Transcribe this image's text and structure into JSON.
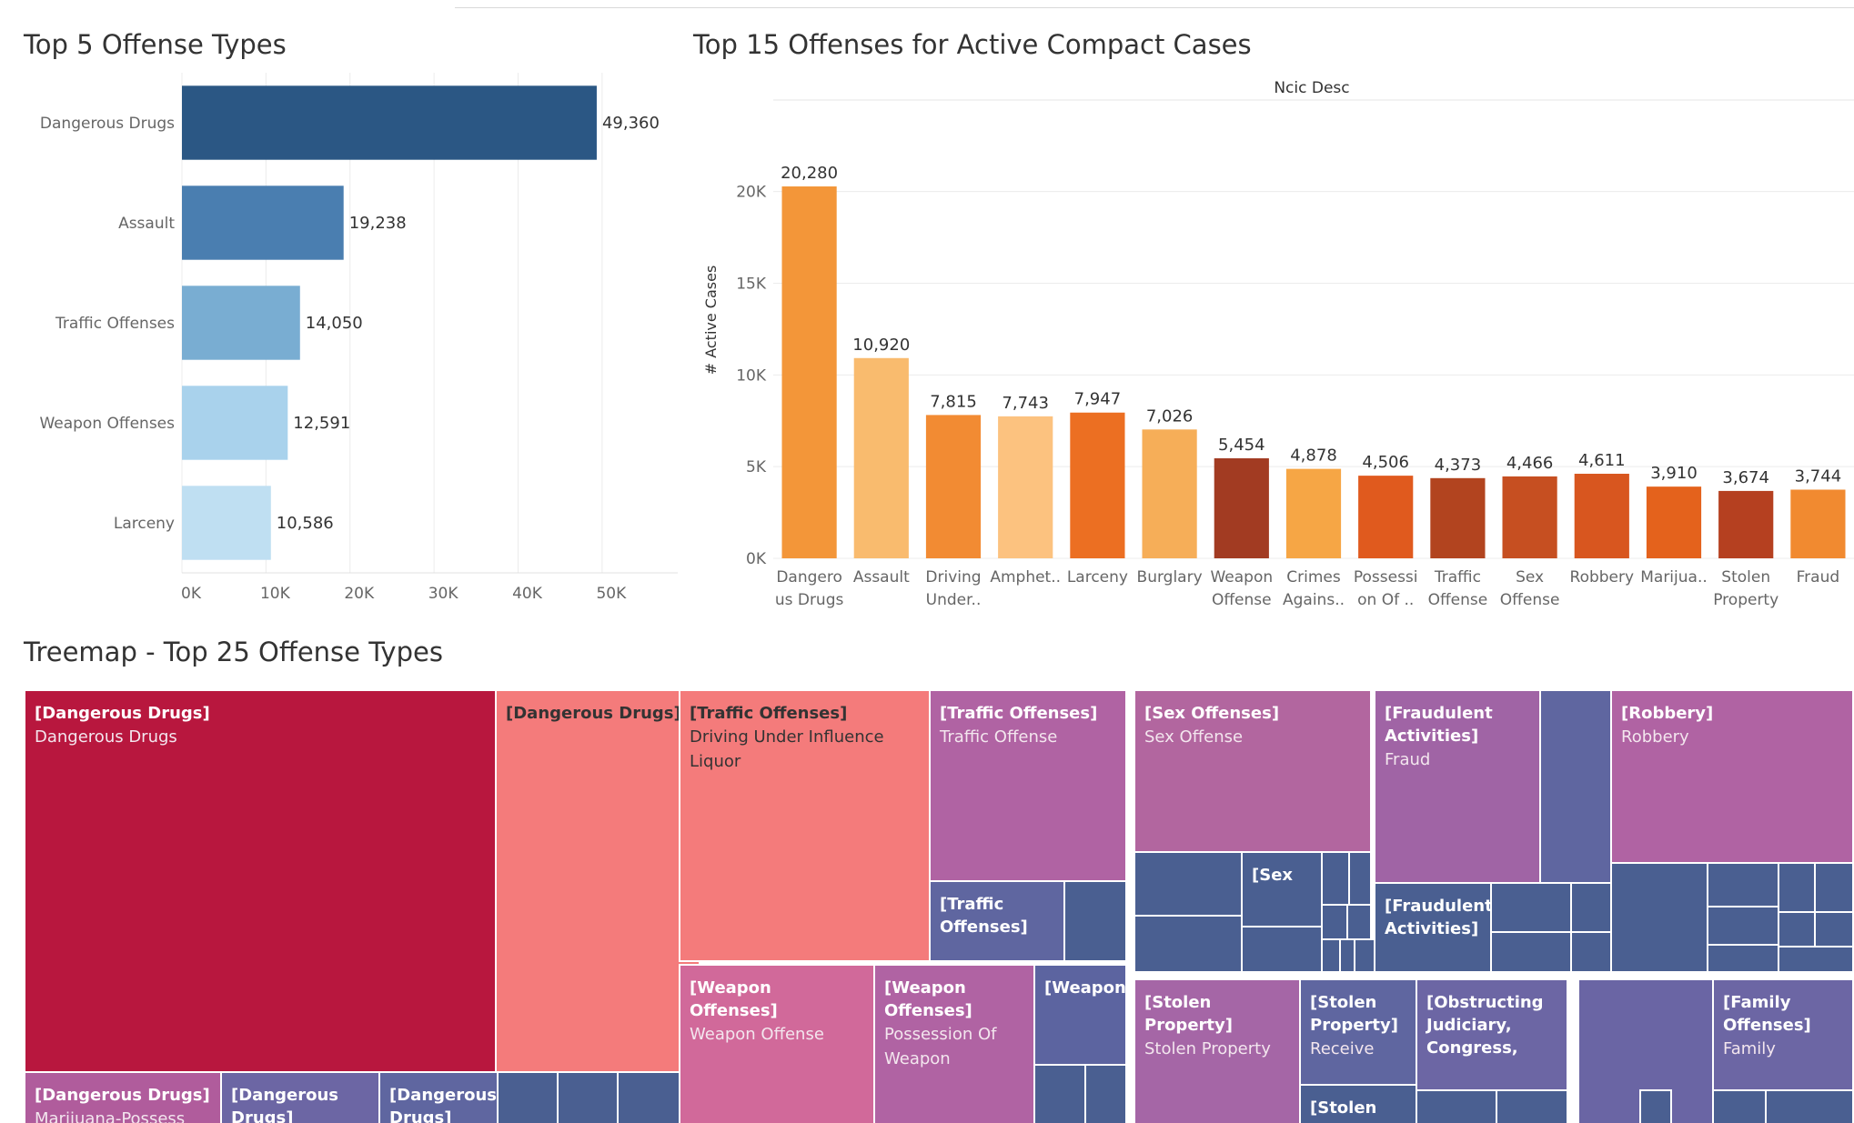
{
  "chart_data": [
    {
      "type": "bar",
      "orientation": "horizontal",
      "title": "Top 5 Offense Types",
      "categories": [
        "Dangerous Drugs",
        "Assault",
        "Traffic Offenses",
        "Weapon Offenses",
        "Larceny"
      ],
      "values": [
        49360,
        19238,
        14050,
        12591,
        10586
      ],
      "value_labels": [
        "49,360",
        "19,238",
        "14,050",
        "12,591",
        "10,586"
      ],
      "colors": [
        "#2b5784",
        "#4a7eb0",
        "#79add2",
        "#a9d2ec",
        "#bfdff2"
      ],
      "xticks": [
        "0K",
        "10K",
        "20K",
        "30K",
        "40K",
        "50K"
      ],
      "xtick_values": [
        0,
        10000,
        20000,
        30000,
        40000,
        50000
      ],
      "xlim": [
        0,
        59000
      ],
      "grid": "vertical"
    },
    {
      "type": "bar",
      "title": "Top 15 Offenses for Active Compact Cases",
      "header": "Ncic Desc",
      "ylabel": "# Active Cases",
      "categories": [
        [
          "Dangero",
          "us Drugs"
        ],
        [
          "Assault"
        ],
        [
          "Driving",
          "Under.."
        ],
        [
          "Amphet.."
        ],
        [
          "Larceny"
        ],
        [
          "Burglary"
        ],
        [
          "Weapon",
          "Offense"
        ],
        [
          "Crimes",
          "Agains.."
        ],
        [
          "Possessi",
          "on Of .."
        ],
        [
          "Traffic",
          "Offense"
        ],
        [
          "Sex",
          "Offense"
        ],
        [
          "Robbery"
        ],
        [
          "Marijua.."
        ],
        [
          "Stolen",
          "Property"
        ],
        [
          "Fraud"
        ]
      ],
      "values": [
        20280,
        10920,
        7815,
        7743,
        7947,
        7026,
        5454,
        4878,
        4506,
        4373,
        4466,
        4611,
        3910,
        3674,
        3744
      ],
      "value_labels": [
        "20,280",
        "10,920",
        "7,815",
        "7,743",
        "7,947",
        "7,026",
        "5,454",
        "4,878",
        "4,506",
        "4,373",
        "4,466",
        "4,611",
        "3,910",
        "3,674",
        "3,744"
      ],
      "colors": [
        "#f39639",
        "#f9bb6e",
        "#f28b33",
        "#fcc27f",
        "#ec6f22",
        "#f6ae58",
        "#a23b22",
        "#f6a645",
        "#e05a1e",
        "#b2441f",
        "#c64f21",
        "#d8561f",
        "#e4621c",
        "#b54020",
        "#f18a30"
      ],
      "yticks": [
        "0K",
        "5K",
        "10K",
        "15K",
        "20K"
      ],
      "ytick_values": [
        0,
        5000,
        10000,
        15000,
        20000
      ],
      "ylim": [
        0,
        24000
      ],
      "grid": "horizontal"
    },
    {
      "type": "treemap",
      "title": "Treemap - Top 25 Offense Types",
      "tiles": [
        {
          "group": "[Dangerous Drugs]",
          "label": "Dangerous Drugs",
          "color": "#b8173e"
        },
        {
          "group": "[Dangerous Drugs]",
          "label": "",
          "color": "#f47b7b"
        },
        {
          "group": "[Dangerous Drugs]",
          "label": "Marijuana-Possess",
          "color": "#b05c9c"
        },
        {
          "group": "[Dangerous Drugs]",
          "label": "",
          "color": "#6c66a4"
        },
        {
          "group": "[Dangerous Drugs]",
          "label": "",
          "color": "#5f66a0"
        },
        {
          "group": "[Traffic Offenses]",
          "label": "Driving Under Influence Liquor",
          "color": "#f47b7b"
        },
        {
          "group": "[Traffic Offenses]",
          "label": "Traffic Offense",
          "color": "#b063a3"
        },
        {
          "group": "[Traffic Offenses]",
          "label": "",
          "color": "#5f66a0"
        },
        {
          "group": "[Weapon Offenses]",
          "label": "Weapon Offense",
          "color": "#d1699a"
        },
        {
          "group": "[Weapon Offenses]",
          "label": "Possession Of Weapon",
          "color": "#b063a3"
        },
        {
          "group": "[Weapon",
          "label": "",
          "color": "#5c64a0"
        },
        {
          "group": "[Sex Offenses]",
          "label": "Sex Offense",
          "color": "#b2669f"
        },
        {
          "group": "[Sex",
          "label": "",
          "color": "#4a5f91"
        },
        {
          "group": "[Fraudulent Activities]",
          "label": "Fraud",
          "color": "#a064a5"
        },
        {
          "group": "[Fraudulent Activities]",
          "label": "",
          "color": "#4a5f91"
        },
        {
          "group": "[Robbery]",
          "label": "Robbery",
          "color": "#b063a3"
        },
        {
          "group": "[Stolen Property]",
          "label": "Stolen Property",
          "color": "#a566a6"
        },
        {
          "group": "[Stolen Property]",
          "label": "Receive",
          "color": "#5f66a0"
        },
        {
          "group": "[Stolen",
          "label": "",
          "color": "#4a5f91"
        },
        {
          "group": "[Obstructing Judiciary, Congress,",
          "label": "",
          "color": "#6c66a4"
        },
        {
          "group": "",
          "label": "",
          "color": "#6a65a4"
        },
        {
          "group": "[Family Offenses]",
          "label": "Family",
          "color": "#6c66a4"
        }
      ]
    }
  ],
  "tiles_text": {
    "t1h": "[Dangerous Drugs]",
    "t1s": "Dangerous Drugs",
    "t2h": "[Dangerous Drugs]",
    "t3h": "[Dangerous Drugs]",
    "t3s": "Marijuana-Possess",
    "t4h": "[Dangerous Drugs]",
    "t5h": "[Dangerous Drugs]",
    "t6h": "[Traffic Offenses]",
    "t6s": "Driving Under Influence Liquor",
    "t7h": "[Traffic Offenses]",
    "t7s": "Traffic Offense",
    "t8h": "[Traffic Offenses]",
    "t9h": "[Weapon Offenses]",
    "t9s": "Weapon Offense",
    "t10h": "[Weapon Offenses]",
    "t10s": "Possession Of Weapon",
    "t11h": "[Weapon",
    "t12h": "[Sex Offenses]",
    "t12s": "Sex Offense",
    "t13h": "[Sex",
    "t14h": "[Fraudulent Activities]",
    "t14s": "Fraud",
    "t15h": "[Fraudulent Activities]",
    "t16h": "[Robbery]",
    "t16s": "Robbery",
    "t17h": "[Stolen Property]",
    "t17s": "Stolen Property",
    "t18h": "[Stolen Property]",
    "t18s": "Receive",
    "t19h": "[Stolen",
    "t20h": "[Obstructing Judiciary, Congress,",
    "t21h": "[Family Offenses]",
    "t21s": "Family"
  }
}
